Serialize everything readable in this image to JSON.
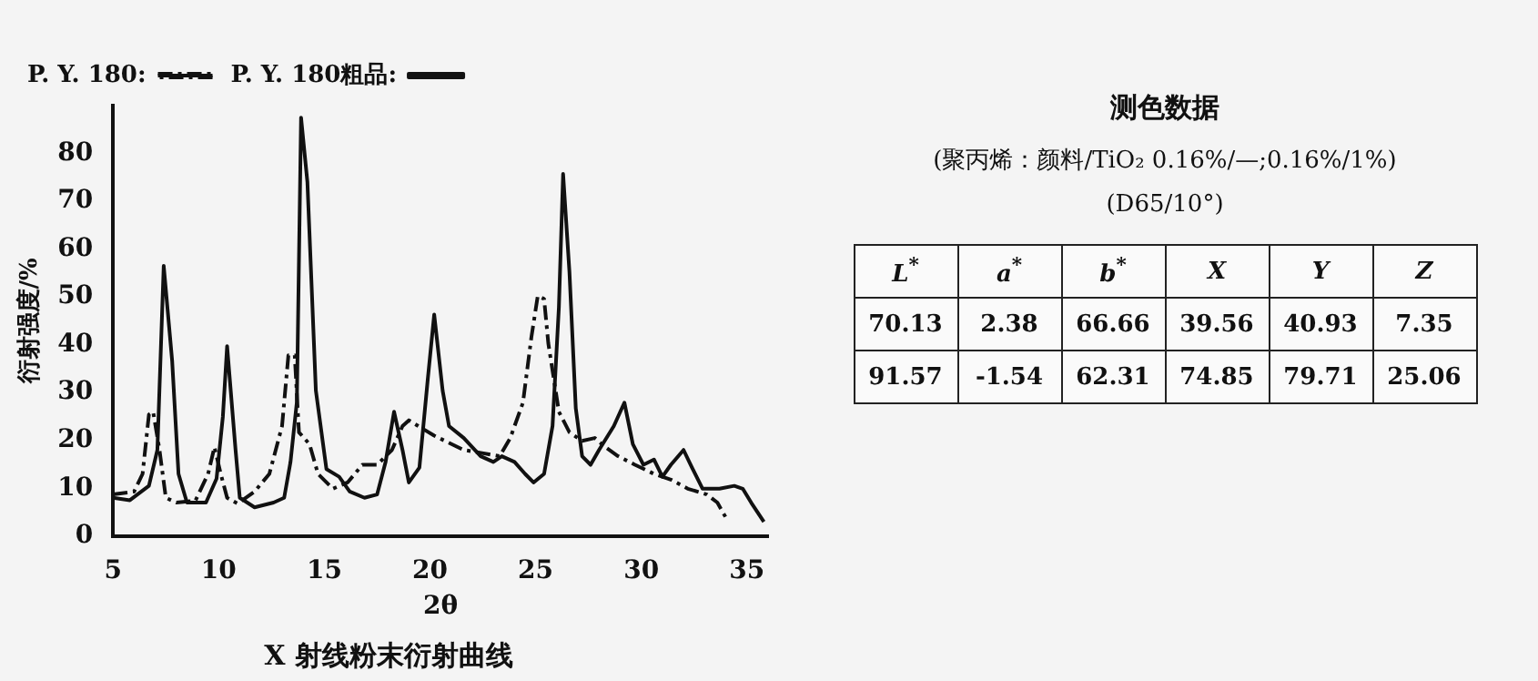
{
  "chart_data": [
    {
      "type": "line",
      "title": "X 射线粉末衍射曲线",
      "xlabel": "2θ",
      "ylabel": "衍射强度/%",
      "xlim": [
        5,
        36
      ],
      "xticks": [
        5,
        10,
        15,
        20,
        25,
        30,
        35
      ],
      "ylim": [
        0,
        90
      ],
      "yticks": [
        0,
        10,
        20,
        30,
        40,
        50,
        60,
        70,
        80
      ],
      "grid": false,
      "legend": "top",
      "marker": "none",
      "series": [
        {
          "name": "P. Y. 180粗品:",
          "color": "#111111",
          "line_style": "solid",
          "x": [
            5,
            5.8,
            6.7,
            7.1,
            7.4,
            7.8,
            8.1,
            8.5,
            9.4,
            9.9,
            10.2,
            10.4,
            10.8,
            11.0,
            11.7,
            12.6,
            13.1,
            13.4,
            13.7,
            13.9,
            14.2,
            14.6,
            15.1,
            15.7,
            16.2,
            16.9,
            17.5,
            17.9,
            18.3,
            18.7,
            19.0,
            19.5,
            19.9,
            20.2,
            20.6,
            20.9,
            21.6,
            22.4,
            23.0,
            23.4,
            24.0,
            24.5,
            24.9,
            25.4,
            25.8,
            26.1,
            26.3,
            26.6,
            26.9,
            27.2,
            27.6,
            28.0,
            28.7,
            29.2,
            29.6,
            30.1,
            30.6,
            31.0,
            31.4,
            32.0,
            32.4,
            32.9,
            33.7,
            34.4,
            34.8,
            35.2,
            35.8
          ],
          "values": [
            8,
            7.5,
            10.5,
            18,
            56.5,
            36.6,
            13,
            7,
            7,
            12,
            25,
            39.7,
            18,
            8,
            6,
            7,
            8,
            15.5,
            28,
            87.5,
            74,
            30.4,
            14,
            12.4,
            9.3,
            8,
            8.7,
            15.5,
            26,
            18,
            11.2,
            14.3,
            33,
            46.3,
            30.4,
            23,
            20.5,
            16.7,
            15.5,
            16.7,
            15.5,
            13,
            11.2,
            13,
            23,
            47.8,
            75.7,
            55.2,
            26.7,
            16.7,
            14.9,
            18,
            23,
            27.9,
            19.2,
            14.9,
            16,
            12.4,
            14.9,
            18,
            14.3,
            9.9,
            9.9,
            10.5,
            9.9,
            7,
            3
          ]
        },
        {
          "name": "P. Y. 180:",
          "color": "#111111",
          "line_style": "dashed",
          "x": [
            5,
            6,
            6.4,
            6.7,
            6.9,
            7.2,
            7.5,
            8.0,
            8.9,
            9.5,
            9.8,
            10.1,
            10.4,
            10.9,
            11.7,
            12.4,
            13.0,
            13.3,
            13.6,
            13.8,
            14.3,
            14.7,
            15.4,
            16.1,
            16.8,
            17.5,
            18.2,
            18.7,
            19.0,
            20.2,
            21.6,
            22.4,
            23.3,
            23.8,
            24.4,
            24.8,
            25.1,
            25.4,
            25.6,
            26.1,
            26.6,
            27.2,
            27.8,
            28.3,
            28.9,
            29.7,
            30.6,
            31.4,
            32.2,
            33.1,
            33.6,
            34.1
          ],
          "values": [
            8.7,
            9.3,
            13,
            25.4,
            26,
            18,
            8,
            7,
            7.4,
            13,
            18.6,
            13,
            8,
            6.8,
            9.3,
            13,
            23,
            37.8,
            37.8,
            21.7,
            19.2,
            13,
            9.9,
            11.2,
            14.9,
            14.9,
            18,
            23,
            24.2,
            21,
            18,
            17.4,
            16.7,
            20.5,
            27.9,
            41.6,
            50.2,
            49.6,
            40.3,
            26,
            21.7,
            19.9,
            20.5,
            18.6,
            16.7,
            14.9,
            13,
            11.8,
            9.9,
            8.7,
            7,
            3.1
          ]
        }
      ]
    },
    {
      "type": "other",
      "title": "测色数据",
      "subtitle": "(聚丙烯：颜料/TiO₂ 0.16%/—;0.16%/1%)",
      "annotations": [
        "(D65/10°)"
      ],
      "categories": [
        "L$^{*}$",
        "a$^{*}$",
        "b$^{*}$",
        "X",
        "Y",
        "Z"
      ],
      "cells": [
        [
          "70.13",
          "2.38",
          "66.66",
          "39.56",
          "40.93",
          "7.35"
        ],
        [
          "91.57",
          "-1.54",
          "62.31",
          "74.85",
          "79.71",
          "25.06"
        ]
      ]
    }
  ]
}
